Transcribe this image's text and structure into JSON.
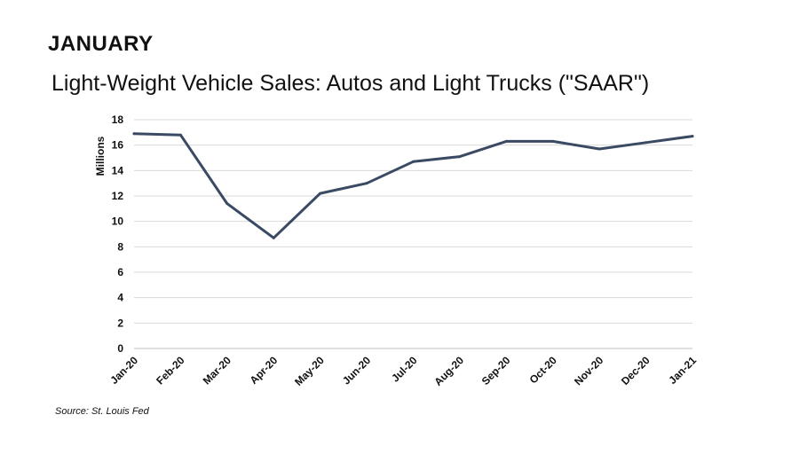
{
  "header": {
    "heading": "JANUARY",
    "subtitle": "Light-Weight Vehicle Sales: Autos and Light Trucks (\"SAAR\")"
  },
  "footer": {
    "source": "Source: St. Louis Fed"
  },
  "colors": {
    "line": "#3a4a63",
    "grid": "#d9d9d9",
    "axis": "#bfbfbf"
  },
  "chart_data": {
    "type": "line",
    "title": "",
    "xlabel": "",
    "ylabel": "Millions",
    "ylim": [
      0,
      18
    ],
    "yticks": [
      0,
      2,
      4,
      6,
      8,
      10,
      12,
      14,
      16,
      18
    ],
    "grid": true,
    "categories": [
      "Jan-20",
      "Feb-20",
      "Mar-20",
      "Apr-20",
      "May-20",
      "Jun-20",
      "Jul-20",
      "Aug-20",
      "Sep-20",
      "Oct-20",
      "Nov-20",
      "Dec-20",
      "Jan-21"
    ],
    "series": [
      {
        "values": [
          16.9,
          16.8,
          11.4,
          8.7,
          12.2,
          13.0,
          14.7,
          15.1,
          16.3,
          16.3,
          15.7,
          16.2,
          16.7
        ]
      }
    ]
  }
}
